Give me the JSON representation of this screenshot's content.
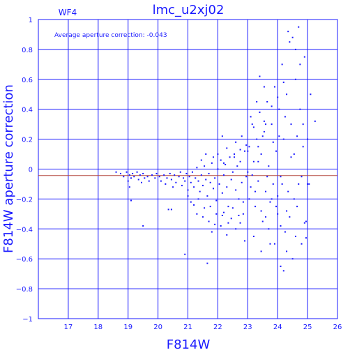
{
  "chart_data": {
    "type": "scatter",
    "title": "lmc_u2xj02",
    "subtitle": "WF4",
    "annotation": "Average aperture correction:  -0.043",
    "xlabel": "F814W",
    "ylabel": "F814W aperture correction",
    "xlim": [
      16,
      26
    ],
    "ylim": [
      -1,
      1
    ],
    "x_ticks": [
      17,
      18,
      19,
      20,
      21,
      22,
      23,
      24,
      25,
      26
    ],
    "y_ticks": [
      -1,
      -0.8,
      -0.6,
      -0.4,
      -0.2,
      0,
      0.2,
      0.4,
      0.6,
      0.8,
      1
    ],
    "y_tick_labels": [
      "−1",
      "−0.8",
      "−0.6",
      "−0.4",
      "−0.2",
      "0",
      "0.2",
      "0.4",
      "0.6",
      "0.8",
      "1"
    ],
    "grid": true,
    "reference_line": {
      "y": -0.043,
      "color": "#b4463c"
    },
    "series": [
      {
        "marker": "square",
        "color": "#1a1aff",
        "points": [
          [
            18.6,
            -0.02
          ],
          [
            18.75,
            -0.03
          ],
          [
            18.85,
            -0.05
          ],
          [
            18.95,
            -0.02
          ],
          [
            19.05,
            -0.04
          ],
          [
            19.0,
            -0.08
          ],
          [
            19.1,
            -0.06
          ],
          [
            19.15,
            -0.03
          ],
          [
            19.2,
            -0.05
          ],
          [
            19.3,
            -0.02
          ],
          [
            19.35,
            -0.07
          ],
          [
            19.4,
            -0.04
          ],
          [
            19.45,
            -0.09
          ],
          [
            19.5,
            -0.03
          ],
          [
            19.55,
            -0.06
          ],
          [
            19.65,
            -0.05
          ],
          [
            19.7,
            -0.08
          ],
          [
            19.8,
            -0.04
          ],
          [
            19.9,
            -0.06
          ],
          [
            19.95,
            -0.03
          ],
          [
            20.05,
            -0.05
          ],
          [
            20.1,
            -0.08
          ],
          [
            20.2,
            -0.04
          ],
          [
            20.25,
            -0.1
          ],
          [
            20.3,
            -0.06
          ],
          [
            20.4,
            -0.03
          ],
          [
            20.45,
            -0.07
          ],
          [
            20.5,
            -0.12
          ],
          [
            20.55,
            -0.04
          ],
          [
            20.6,
            -0.09
          ],
          [
            20.7,
            -0.05
          ],
          [
            20.75,
            -0.02
          ],
          [
            20.8,
            -0.11
          ],
          [
            20.85,
            -0.06
          ],
          [
            20.9,
            -0.08
          ],
          [
            20.95,
            -0.03
          ],
          [
            19.05,
            -0.12
          ],
          [
            19.1,
            -0.21
          ],
          [
            19.5,
            -0.38
          ],
          [
            20.35,
            -0.27
          ],
          [
            20.45,
            -0.27
          ],
          [
            20.9,
            -0.57
          ],
          [
            21.0,
            -0.14
          ],
          [
            21.05,
            -0.05
          ],
          [
            21.1,
            -0.09
          ],
          [
            21.15,
            -0.02
          ],
          [
            21.2,
            -0.12
          ],
          [
            21.25,
            -0.06
          ],
          [
            21.3,
            0.01
          ],
          [
            21.35,
            -0.08
          ],
          [
            21.4,
            -0.15
          ],
          [
            21.45,
            -0.04
          ],
          [
            21.5,
            -0.11
          ],
          [
            21.55,
            0.02
          ],
          [
            21.6,
            -0.07
          ],
          [
            21.65,
            -0.18
          ],
          [
            21.7,
            -0.03
          ],
          [
            21.75,
            -0.09
          ],
          [
            21.8,
            0.04
          ],
          [
            21.85,
            -0.13
          ],
          [
            21.9,
            -0.06
          ],
          [
            21.95,
            -0.21
          ],
          [
            22.0,
            0.0
          ],
          [
            22.05,
            -0.1
          ],
          [
            22.1,
            0.06
          ],
          [
            22.15,
            -0.16
          ],
          [
            22.2,
            -0.04
          ],
          [
            22.25,
            0.03
          ],
          [
            22.3,
            -0.12
          ],
          [
            22.35,
            -0.25
          ],
          [
            22.4,
            0.08
          ],
          [
            22.45,
            -0.07
          ],
          [
            22.5,
            -0.02
          ],
          [
            22.55,
            0.1
          ],
          [
            22.6,
            -0.14
          ],
          [
            22.65,
            0.02
          ],
          [
            22.7,
            -0.2
          ],
          [
            22.75,
            0.05
          ],
          [
            22.8,
            -0.09
          ],
          [
            22.85,
            -0.3
          ],
          [
            22.9,
            0.12
          ],
          [
            22.95,
            -0.05
          ],
          [
            21.1,
            -0.22
          ],
          [
            21.3,
            -0.3
          ],
          [
            21.55,
            -0.26
          ],
          [
            21.7,
            -0.35
          ],
          [
            21.8,
            -0.42
          ],
          [
            21.95,
            -0.3
          ],
          [
            22.1,
            -0.38
          ],
          [
            22.2,
            -0.29
          ],
          [
            22.3,
            -0.44
          ],
          [
            22.45,
            -0.33
          ],
          [
            22.6,
            -0.4
          ],
          [
            22.75,
            -0.36
          ],
          [
            22.9,
            -0.48
          ],
          [
            21.6,
            0.1
          ],
          [
            22.0,
            0.1
          ],
          [
            22.3,
            0.14
          ],
          [
            22.6,
            0.18
          ],
          [
            22.8,
            0.22
          ],
          [
            21.0,
            -0.18
          ],
          [
            21.2,
            -0.24
          ],
          [
            21.35,
            -0.2
          ],
          [
            21.5,
            -0.32
          ],
          [
            21.75,
            -0.25
          ],
          [
            21.9,
            -0.37
          ],
          [
            22.15,
            -0.31
          ],
          [
            22.35,
            -0.36
          ],
          [
            22.5,
            -0.26
          ],
          [
            22.7,
            -0.31
          ],
          [
            22.85,
            -0.22
          ],
          [
            21.45,
            0.06
          ],
          [
            21.85,
            0.08
          ],
          [
            22.2,
            0.04
          ],
          [
            22.55,
            0.08
          ],
          [
            22.75,
            0.13
          ],
          [
            22.95,
            0.16
          ],
          [
            23.0,
            -0.02
          ],
          [
            23.05,
            0.15
          ],
          [
            23.1,
            -0.12
          ],
          [
            23.15,
            0.3
          ],
          [
            23.2,
            0.05
          ],
          [
            23.25,
            -0.25
          ],
          [
            23.3,
            0.2
          ],
          [
            23.35,
            -0.08
          ],
          [
            23.4,
            0.38
          ],
          [
            23.45,
            0.1
          ],
          [
            23.5,
            -0.35
          ],
          [
            23.55,
            0.25
          ],
          [
            23.6,
            -0.15
          ],
          [
            23.65,
            0.45
          ],
          [
            23.7,
            0.02
          ],
          [
            23.75,
            -0.5
          ],
          [
            23.8,
            0.3
          ],
          [
            23.85,
            -0.1
          ],
          [
            23.9,
            0.55
          ],
          [
            23.95,
            0.12
          ],
          [
            24.0,
            -0.3
          ],
          [
            24.05,
            0.4
          ],
          [
            24.1,
            -0.05
          ],
          [
            24.15,
            0.7
          ],
          [
            24.2,
            0.2
          ],
          [
            24.25,
            -0.42
          ],
          [
            24.3,
            0.5
          ],
          [
            24.35,
            -0.15
          ],
          [
            24.4,
            0.85
          ],
          [
            24.45,
            0.3
          ],
          [
            24.5,
            -0.6
          ],
          [
            24.55,
            0.1
          ],
          [
            24.6,
            0.6
          ],
          [
            24.65,
            -0.25
          ],
          [
            24.7,
            0.95
          ],
          [
            24.75,
            0.4
          ],
          [
            24.8,
            -0.5
          ],
          [
            24.85,
            0.15
          ],
          [
            24.9,
            0.75
          ],
          [
            24.95,
            -0.35
          ],
          [
            25.0,
            0.2
          ],
          [
            25.05,
            -0.1
          ],
          [
            25.1,
            0.5
          ],
          [
            25.25,
            0.32
          ],
          [
            23.4,
            0.62
          ],
          [
            23.55,
            0.55
          ],
          [
            23.8,
            0.42
          ],
          [
            24.0,
            0.48
          ],
          [
            24.2,
            0.58
          ],
          [
            24.35,
            0.92
          ],
          [
            24.5,
            0.88
          ],
          [
            24.6,
            0.8
          ],
          [
            24.75,
            0.7
          ],
          [
            23.2,
            -0.45
          ],
          [
            23.45,
            -0.55
          ],
          [
            23.7,
            -0.4
          ],
          [
            23.9,
            -0.5
          ],
          [
            24.1,
            -0.65
          ],
          [
            24.2,
            -0.68
          ],
          [
            24.3,
            -0.55
          ],
          [
            24.6,
            -0.45
          ],
          [
            24.9,
            -0.36
          ],
          [
            24.95,
            -0.46
          ],
          [
            23.1,
            0.35
          ],
          [
            23.3,
            0.45
          ],
          [
            23.6,
            0.3
          ],
          [
            23.85,
            0.18
          ],
          [
            24.05,
            0.22
          ],
          [
            24.25,
            0.35
          ],
          [
            24.45,
            0.08
          ],
          [
            24.65,
            0.22
          ],
          [
            24.85,
            0.3
          ],
          [
            23.0,
            0.12
          ],
          [
            23.2,
            0.28
          ],
          [
            23.35,
            0.05
          ],
          [
            23.5,
            0.22
          ],
          [
            23.65,
            -0.05
          ],
          [
            23.8,
            -0.2
          ],
          [
            24.0,
            -0.18
          ],
          [
            24.15,
            -0.1
          ],
          [
            24.3,
            -0.28
          ],
          [
            24.55,
            -0.2
          ],
          [
            24.7,
            -0.1
          ],
          [
            23.05,
            -0.2
          ],
          [
            23.25,
            -0.15
          ],
          [
            23.45,
            -0.28
          ],
          [
            23.6,
            -0.32
          ],
          [
            23.75,
            -0.22
          ],
          [
            23.95,
            -0.25
          ],
          [
            24.1,
            -0.38
          ],
          [
            24.4,
            -0.32
          ],
          [
            24.8,
            -0.05
          ],
          [
            25.0,
            -0.1
          ],
          [
            21.65,
            -0.63
          ],
          [
            22.15,
            0.22
          ],
          [
            23.55,
            0.32
          ],
          [
            23.15,
            -0.04
          ],
          [
            23.35,
            0.15
          ]
        ]
      }
    ]
  }
}
